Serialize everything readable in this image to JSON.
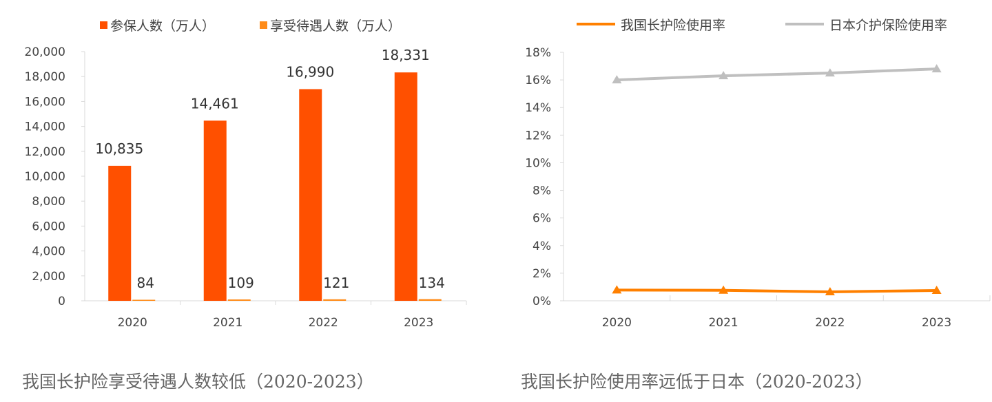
{
  "chart_data": [
    {
      "type": "bar",
      "title": "我国长护险享受待遇人数较低（2020-2023）",
      "categories": [
        "2020",
        "2021",
        "2022",
        "2023"
      ],
      "series": [
        {
          "name": "参保人数（万人）",
          "values": [
            10835,
            14461,
            16990,
            18331
          ],
          "labels": [
            "10,835",
            "14,461",
            "16,990",
            "18,331"
          ],
          "color": "#FF5000"
        },
        {
          "name": "享受待遇人数（万人）",
          "values": [
            84,
            109,
            121,
            134
          ],
          "labels": [
            "84",
            "109",
            "121",
            "134"
          ],
          "color": "#FF8C1A"
        }
      ],
      "ylim": [
        0,
        20000
      ],
      "yticks": [
        "0",
        "2,000",
        "4,000",
        "6,000",
        "8,000",
        "10,000",
        "12,000",
        "14,000",
        "16,000",
        "18,000",
        "20,000"
      ],
      "legend": "top"
    },
    {
      "type": "line",
      "title": "我国长护险使用率远低于日本（2020-2023）",
      "categories": [
        "2020",
        "2021",
        "2022",
        "2023"
      ],
      "series": [
        {
          "name": "我国长护险使用率",
          "values": [
            0.78,
            0.76,
            0.65,
            0.75
          ],
          "color": "#FF8000"
        },
        {
          "name": "日本介护保险使用率",
          "values": [
            16.0,
            16.3,
            16.5,
            16.8
          ],
          "color": "#BFBFBF"
        }
      ],
      "ylim": [
        0,
        18
      ],
      "yticks": [
        "0%",
        "2%",
        "4%",
        "6%",
        "8%",
        "10%",
        "12%",
        "14%",
        "16%",
        "18%"
      ],
      "legend": "top"
    }
  ]
}
